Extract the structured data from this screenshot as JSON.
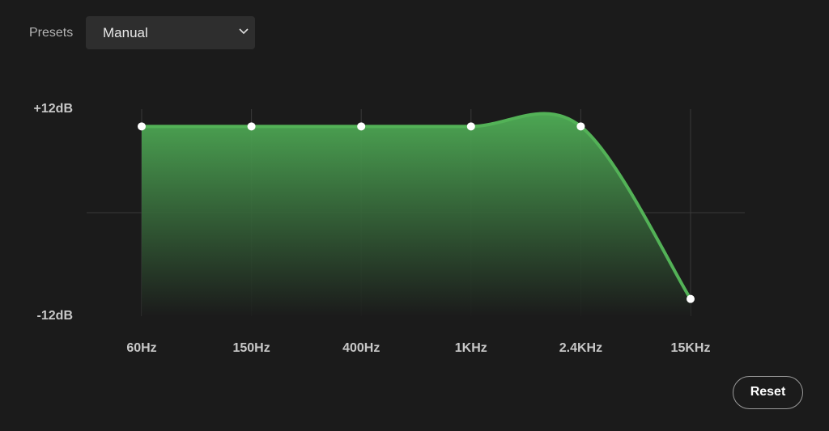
{
  "presets_label": "Presets",
  "preset_value": "Manual",
  "reset_button": "Reset",
  "chart_data": {
    "type": "area",
    "categories": [
      "60Hz",
      "150Hz",
      "400Hz",
      "1KHz",
      "2.4KHz",
      "15KHz"
    ],
    "values": [
      10,
      10,
      10,
      10,
      10,
      -10
    ],
    "ylim": [
      -12,
      12
    ],
    "yticks": [
      {
        "value": 12,
        "label": "+12dB"
      },
      {
        "value": -12,
        "label": "-12dB"
      }
    ],
    "color": "#53b257",
    "grid": true
  }
}
